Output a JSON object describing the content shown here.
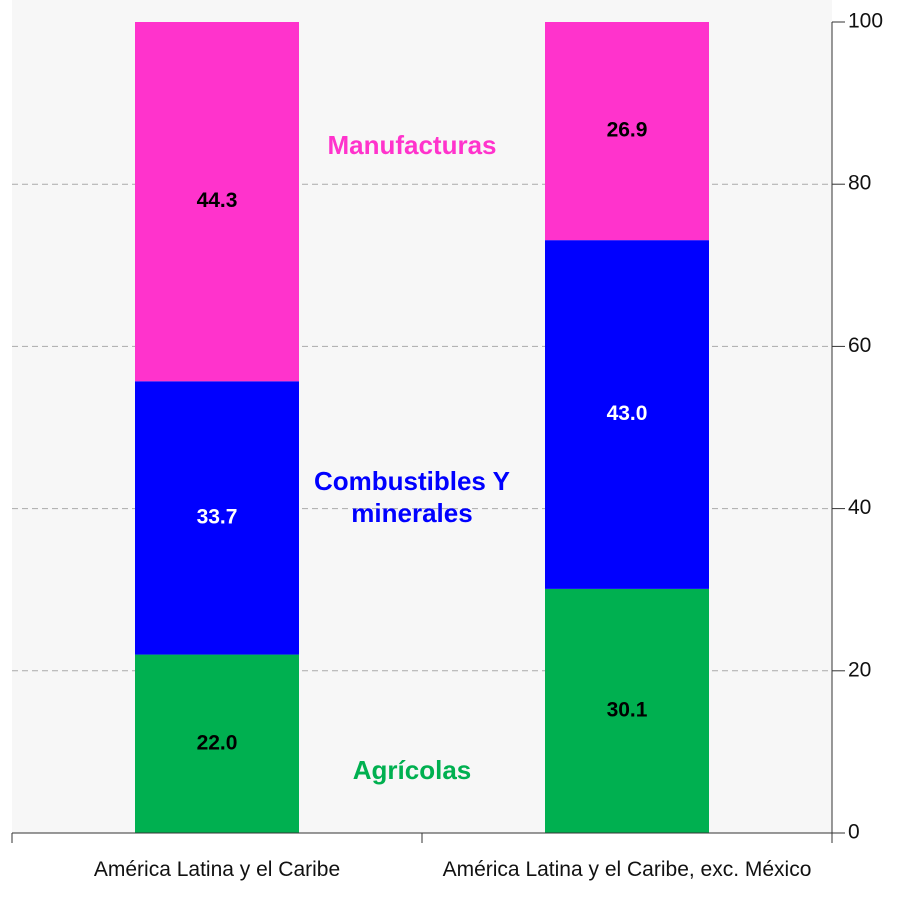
{
  "chart_data": {
    "type": "stacked_bar",
    "categories": [
      "América Latina y el Caribe",
      "América Latina y el Caribe, exc. México"
    ],
    "series": [
      {
        "name": "Agrícolas",
        "color": "#00b050",
        "label_color": "#000000",
        "values": [
          22.0,
          30.1
        ],
        "value_labels": [
          "22.0",
          "30.1"
        ]
      },
      {
        "name": "Combustibles Y minerales",
        "color": "#0000ff",
        "label_color": "#ffffff",
        "values": [
          33.7,
          43.0
        ],
        "value_labels": [
          "33.7",
          "43.0"
        ]
      },
      {
        "name": "Manufacturas",
        "color": "#ff33cc",
        "label_color": "#000000",
        "values": [
          44.3,
          26.9
        ],
        "value_labels": [
          "44.3",
          "26.9"
        ]
      }
    ],
    "ylim": [
      0,
      100
    ],
    "yticks": [
      0,
      20,
      40,
      60,
      80,
      100
    ],
    "grid": true,
    "y_axis_side": "right"
  }
}
